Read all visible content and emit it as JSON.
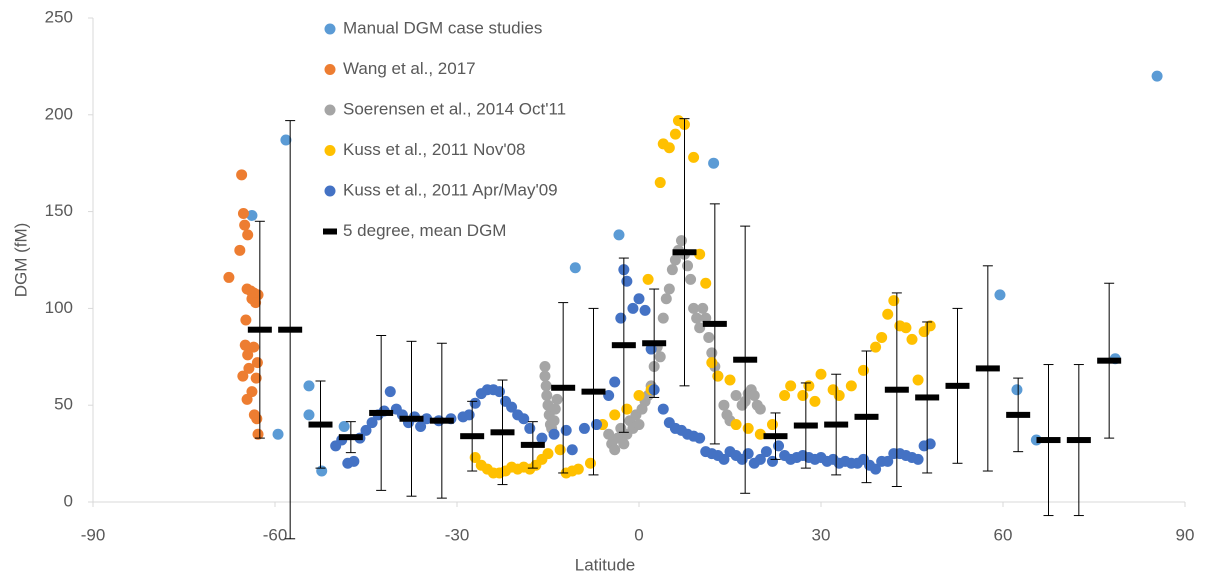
{
  "chart_data": {
    "type": "scatter",
    "xlabel": "Latitude",
    "ylabel": "DGM (fM)",
    "xlim": [
      -90,
      90
    ],
    "xticks": [
      -90,
      -60,
      -30,
      0,
      30,
      60,
      90
    ],
    "ylim": [
      0,
      250
    ],
    "yticks": [
      0,
      50,
      100,
      150,
      200,
      250
    ],
    "legend": "upper left",
    "series": [
      {
        "name": "Manual DGM case studies",
        "color": "#5b9bd5",
        "marker": "circle",
        "x": [
          -63.8,
          -58.2,
          -59.5,
          -54.4,
          -54.4,
          -52.3,
          -48.6,
          -10.5,
          -3.3,
          12.3,
          59.5,
          62.3,
          65.5,
          78.5,
          85.4
        ],
        "values": [
          148,
          187,
          35,
          60,
          45,
          16,
          39,
          121,
          138,
          175,
          107,
          58,
          32,
          74,
          220
        ]
      },
      {
        "name": "Wang et al., 2017",
        "color": "#ed7d31",
        "marker": "circle",
        "x": [
          -65.5,
          -65.2,
          -65,
          -64.5,
          -65.8,
          -67.6,
          -64.6,
          -64,
          -62.8,
          -63.5,
          -63.8,
          -63.2,
          -64.8,
          -64.9,
          -63.5,
          -64.5,
          -62.9,
          -64.3,
          -65.3,
          -63.1,
          -63.8,
          -64.6,
          -63.4,
          -63,
          -62.8
        ],
        "values": [
          169,
          149,
          143,
          138,
          130,
          116,
          110,
          109,
          107,
          108,
          105,
          103,
          94,
          81,
          80,
          76,
          72,
          69,
          65,
          64,
          57,
          53,
          45,
          43,
          35
        ]
      },
      {
        "name": "Soerensen et al., 2014 Oct'11",
        "color": "#a5a5a5",
        "marker": "circle",
        "x": [
          -15.5,
          -15.5,
          -15.3,
          -15.2,
          -15,
          -14.8,
          -14.6,
          -14.4,
          -14,
          -13.8,
          -13.5,
          -5,
          -4.5,
          -4,
          -3.5,
          -3,
          -2.5,
          -2,
          -1.5,
          -1,
          -0.5,
          0,
          0.5,
          1,
          1.5,
          2,
          2.5,
          3,
          3.5,
          4,
          4.5,
          5,
          5.5,
          6,
          6.5,
          7,
          7.5,
          8,
          8.5,
          9,
          9.5,
          10,
          10.5,
          11,
          11.5,
          12,
          12.5,
          13,
          14,
          14.5,
          15,
          16,
          17,
          17.5,
          18,
          18.5,
          19,
          19.5,
          20
        ],
        "values": [
          70,
          65,
          60,
          55,
          50,
          45,
          40,
          38,
          42,
          48,
          53,
          35,
          30,
          27,
          33,
          38,
          30,
          35,
          42,
          38,
          45,
          40,
          48,
          52,
          55,
          60,
          70,
          80,
          75,
          95,
          105,
          110,
          120,
          125,
          130,
          135,
          128,
          122,
          115,
          100,
          95,
          90,
          100,
          95,
          85,
          77,
          70,
          65,
          50,
          45,
          42,
          55,
          50,
          52,
          56,
          58,
          55,
          50,
          48
        ]
      },
      {
        "name": "Kuss et al., 2011 Nov'08",
        "color": "#ffc000",
        "marker": "circle",
        "x": [
          -27,
          -26,
          -25,
          -24,
          -23,
          -22,
          -21,
          -20,
          -19,
          -18,
          -17,
          -16,
          -15,
          -13,
          -12,
          -11,
          -10,
          -8,
          -6,
          -4,
          -2,
          0,
          1.5,
          2,
          3.5,
          4,
          5,
          6,
          6.5,
          7.5,
          9,
          10,
          11,
          12,
          13,
          15,
          16,
          18,
          20,
          22,
          24,
          25,
          27,
          28,
          29,
          30,
          32,
          33,
          35,
          37,
          39,
          40,
          41,
          42,
          43,
          44,
          45,
          46,
          47,
          48
        ],
        "values": [
          23,
          19,
          17,
          15,
          15,
          16,
          18,
          17,
          18,
          17,
          19,
          22,
          25,
          27,
          15,
          16,
          17,
          20,
          40,
          45,
          48,
          55,
          115,
          58,
          165,
          185,
          183,
          190,
          197,
          195,
          178,
          128,
          113,
          72,
          65,
          63,
          40,
          38,
          35,
          40,
          55,
          60,
          55,
          60,
          52,
          66,
          58,
          55,
          60,
          68,
          80,
          85,
          97,
          104,
          91,
          90,
          84,
          63,
          88,
          91
        ]
      },
      {
        "name": "Kuss et al., 2011 Apr/May'09",
        "color": "#4472c4",
        "marker": "circle",
        "x": [
          -50,
          -49,
          -48,
          -47,
          -46,
          -45,
          -44,
          -43,
          -42,
          -41,
          -40,
          -39,
          -38,
          -37,
          -36,
          -35,
          -33,
          -31,
          -29,
          -28,
          -27,
          -26,
          -25,
          -24,
          -23,
          -22,
          -21,
          -20,
          -19,
          -18,
          -16,
          -14,
          -12,
          -11,
          -9,
          -7,
          -5,
          -4,
          -3,
          -2.5,
          -2,
          -1,
          0,
          1,
          2,
          2.5,
          4,
          5,
          6,
          7,
          8,
          9,
          10,
          11,
          12,
          13,
          14,
          15,
          16,
          17,
          18,
          19,
          20,
          21,
          22,
          23,
          24,
          25,
          26,
          27,
          28,
          29,
          30,
          31,
          32,
          33,
          34,
          35,
          36,
          37,
          38,
          39,
          40,
          41,
          42,
          43,
          44,
          45,
          46,
          47,
          48
        ],
        "values": [
          29,
          32,
          20,
          21,
          33,
          37,
          41,
          45,
          47,
          57,
          48,
          45,
          41,
          44,
          39,
          43,
          42,
          43,
          44,
          45,
          51,
          56,
          58,
          58,
          57,
          52,
          49,
          45,
          43,
          38,
          33,
          35,
          37,
          27,
          38,
          40,
          55,
          62,
          95,
          120,
          114,
          100,
          105,
          99,
          79,
          58,
          48,
          41,
          38,
          37,
          35,
          34,
          33,
          26,
          25,
          24,
          22,
          26,
          24,
          22,
          25,
          20,
          22,
          26,
          21,
          29,
          24,
          22,
          23,
          24,
          23,
          22,
          23,
          21,
          22,
          20,
          21,
          20,
          20,
          22,
          19,
          17,
          21,
          21,
          25,
          25,
          24,
          23,
          22,
          29,
          30
        ]
      },
      {
        "name": "5 degree, mean DGM",
        "color": "#000000",
        "marker": "dash",
        "x": [
          -62.5,
          -57.5,
          -52.5,
          -47.5,
          -42.5,
          -37.5,
          -32.5,
          -27.5,
          -22.5,
          -17.5,
          -12.5,
          -7.5,
          -2.5,
          2.5,
          7.5,
          12.5,
          17.5,
          22.5,
          27.5,
          32.5,
          37.5,
          42.5,
          47.5,
          52.5,
          57.5,
          62.5,
          67.5,
          72.5,
          77.5
        ],
        "values": [
          89,
          89,
          40,
          33.5,
          46,
          43,
          42,
          34,
          36,
          29.5,
          59,
          57,
          81,
          82,
          129,
          92,
          73.5,
          34,
          39.5,
          40,
          44,
          58,
          54,
          60,
          69,
          45,
          32,
          32,
          73
        ],
        "errors": [
          56,
          108,
          22.5,
          8,
          40,
          40,
          40,
          18,
          27,
          12,
          44,
          43,
          45,
          28,
          69,
          62,
          69,
          12,
          22,
          26,
          34,
          50,
          39,
          40,
          53,
          19,
          39,
          39,
          40
        ]
      }
    ]
  }
}
